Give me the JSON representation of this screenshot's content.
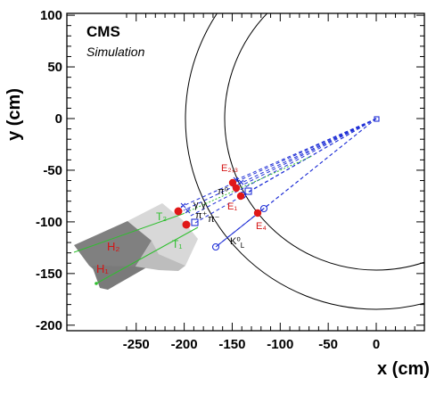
{
  "title": "CMS",
  "subtitle": "Simulation",
  "colors": {
    "frame": "#000000",
    "track": "#1f2fd6",
    "hadron_green": "#2fbf2f",
    "red_hits": "#e01818",
    "red_labels": "#d41414",
    "cluster_dark": "#7f7f7f",
    "cluster_mid": "#a8a8a8",
    "cluster_light": "#d8d8d8"
  },
  "chart_data": {
    "type": "diagram",
    "xlabel": "x (cm)",
    "ylabel": "y (cm)",
    "xlim": [
      -265,
      40
    ],
    "ylim": [
      -200,
      102
    ],
    "xticks": [
      "-250",
      "-200",
      "-150",
      "-100",
      "-50",
      "0"
    ],
    "yticks": [
      "100",
      "50",
      "0",
      "-50",
      "-100",
      "-150",
      "-200"
    ],
    "xtick_values": [
      -250,
      -200,
      -150,
      -100,
      -50,
      0
    ],
    "ytick_values": [
      100,
      50,
      0,
      -50,
      -100,
      -150,
      -200
    ],
    "circle_radii_cm": [
      130,
      185
    ],
    "origin": [
      0,
      0
    ],
    "ecal_hits": [
      {
        "label": "E₁",
        "x": -118,
        "y": -63
      },
      {
        "label": "E₂",
        "x": -122,
        "y": -60
      },
      {
        "label": "E₃",
        "x": -117,
        "y": -58
      },
      {
        "label": "E₄",
        "x": -98,
        "y": -90
      }
    ],
    "hcal_hits": [
      {
        "x": -169,
        "y": -88
      },
      {
        "x": -164,
        "y": -101
      }
    ],
    "hit_labels": {
      "e23": "E₂,₃",
      "e1": "E₁",
      "e4": "E₄",
      "t1": "T₁",
      "t2": "T₂",
      "h1": "H₁",
      "h2": "H₂"
    },
    "particle_labels": {
      "gamma_pair": "γ γ",
      "pi0": "π⁰",
      "pi_plus": "π⁺",
      "pi_minus": "π⁻",
      "k0l": "K⁰",
      "k0l_sub": "L"
    }
  }
}
